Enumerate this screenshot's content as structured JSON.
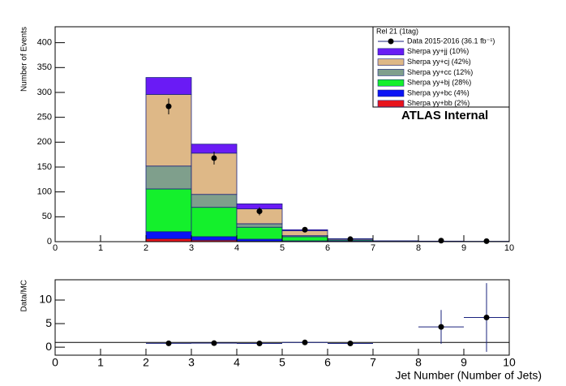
{
  "chart_data": [
    {
      "type": "histogram",
      "ylabel": "Number of Events",
      "annotations": [
        "Rel 21 (1tag)",
        "ATLAS  Internal"
      ],
      "bins": [
        0,
        1,
        2,
        3,
        4,
        5,
        6,
        7,
        8,
        9,
        10
      ],
      "xlim": [
        0,
        10
      ],
      "xticks": [
        0,
        1,
        2,
        3,
        4,
        5,
        6,
        7,
        8,
        9,
        10
      ],
      "ylim": [
        0,
        432
      ],
      "yticks": [
        0,
        50,
        100,
        150,
        200,
        250,
        300,
        350,
        400
      ],
      "stacked": true,
      "series": [
        {
          "name": "Sherpa yy+jj (10%)",
          "color": "#6a1bf5",
          "values": [
            0,
            0,
            34,
            18,
            10,
            2,
            0.5,
            0,
            0,
            0
          ]
        },
        {
          "name": "Sherpa yy+cj (42%)",
          "color": "#deb887",
          "values": [
            0,
            0,
            144,
            83,
            30,
            10,
            2,
            0.5,
            0.5,
            0.3
          ]
        },
        {
          "name": "Sherpa yy+cc (12%)",
          "color": "#7f9f8c",
          "values": [
            0,
            0,
            46,
            26,
            7,
            2,
            0.5,
            0,
            0,
            0
          ]
        },
        {
          "name": "Sherpa yy+bj (28%)",
          "color": "#14f02c",
          "values": [
            0,
            0,
            86,
            59,
            24,
            8.5,
            2,
            1,
            0.5,
            0.3
          ]
        },
        {
          "name": "Sherpa yy+bc (4%)",
          "color": "#0a14f5",
          "values": [
            0,
            0,
            14,
            7,
            4,
            1,
            1,
            0.2,
            0.1,
            0.1
          ]
        },
        {
          "name": "Sherpa yy+bb (2%)",
          "color": "#e8141c",
          "values": [
            0,
            0,
            6,
            3,
            1,
            0.5,
            0,
            0,
            0,
            0
          ]
        }
      ],
      "points": {
        "name": "Data 2015-2016 (36.1 fb⁻¹)",
        "color": "#000000",
        "line_color": "#1a237e",
        "x": [
          2.5,
          3.5,
          4.5,
          5.5,
          6.5,
          8.5,
          9.5
        ],
        "values": [
          272,
          168,
          61,
          24,
          5,
          2,
          1
        ],
        "errors": [
          16,
          13,
          8,
          5,
          2.2,
          1.4,
          1
        ]
      }
    },
    {
      "type": "scatter",
      "ylabel": "Data/MC",
      "xlabel": "Jet Number (Number of Jets)",
      "xlim": [
        0,
        10
      ],
      "xticks": [
        0,
        1,
        2,
        3,
        4,
        5,
        6,
        7,
        8,
        9,
        10
      ],
      "ylim": [
        -1.7,
        14.3
      ],
      "yticks": [
        0,
        5,
        10
      ],
      "reference": 1,
      "color": "#000000",
      "error_color": "#1a237e",
      "x": [
        2.5,
        3.5,
        4.5,
        5.5,
        6.5,
        8.5,
        9.5
      ],
      "values": [
        0.82,
        0.85,
        0.8,
        1.0,
        0.8,
        4.3,
        6.3
      ],
      "errors": [
        0.06,
        0.08,
        0.12,
        0.22,
        0.45,
        3.6,
        7.3
      ],
      "xerrors": [
        0.5,
        0.5,
        0.5,
        0.5,
        0.5,
        0.5,
        0.5
      ]
    }
  ]
}
